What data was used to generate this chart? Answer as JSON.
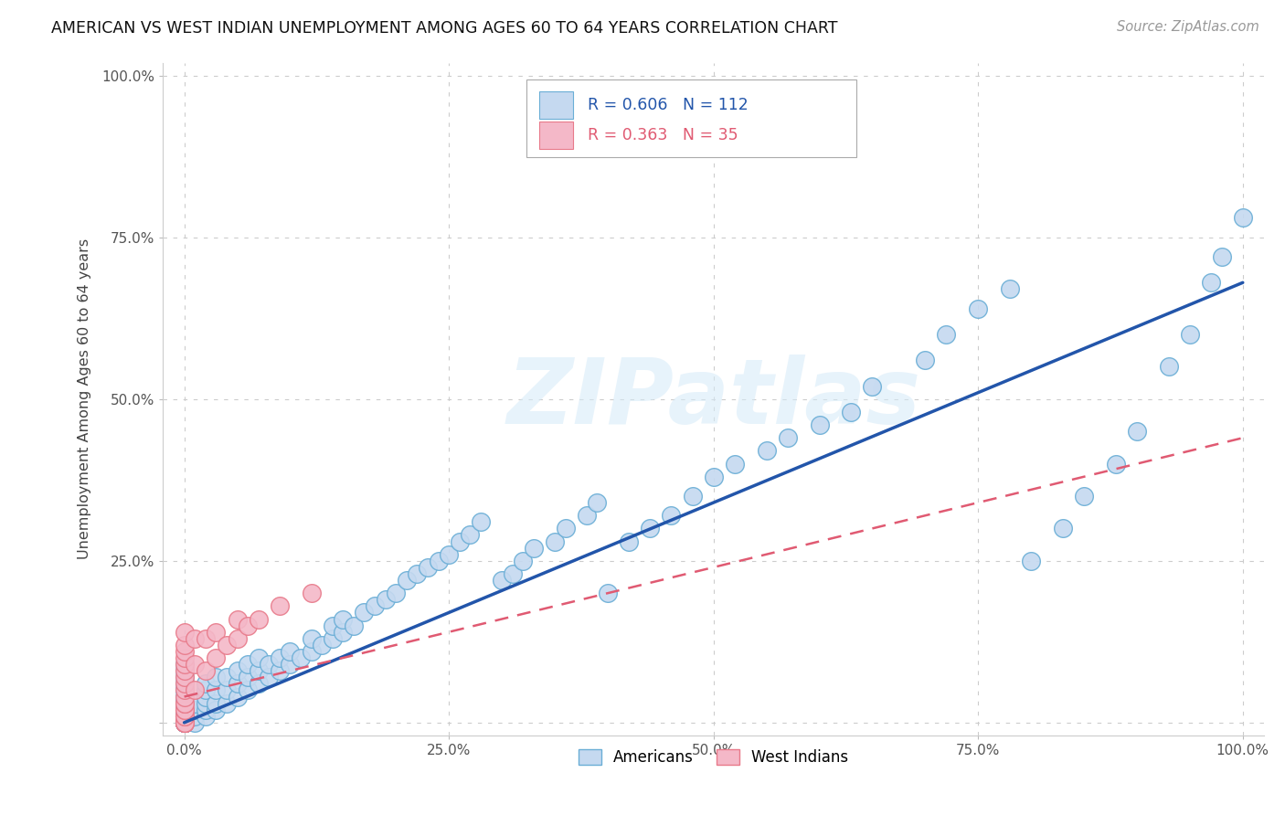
{
  "title": "AMERICAN VS WEST INDIAN UNEMPLOYMENT AMONG AGES 60 TO 64 YEARS CORRELATION CHART",
  "source": "Source: ZipAtlas.com",
  "ylabel": "Unemployment Among Ages 60 to 64 years",
  "watermark": "ZIPatlas",
  "legend_american": "Americans",
  "legend_westindian": "West Indians",
  "r_american": 0.606,
  "n_american": 112,
  "r_westindian": 0.363,
  "n_westindian": 35,
  "american_color": "#c5d9f0",
  "american_edge": "#6aaed6",
  "westindian_color": "#f4b8c8",
  "westindian_edge": "#e87a8a",
  "line_american_color": "#2255aa",
  "line_westindian_color": "#e05a72",
  "background_color": "#ffffff",
  "xlim": [
    -0.02,
    1.02
  ],
  "ylim": [
    -0.02,
    1.02
  ],
  "xticks": [
    0.0,
    0.25,
    0.5,
    0.75,
    1.0
  ],
  "xticklabels": [
    "0.0%",
    "25.0%",
    "50.0%",
    "75.0%",
    "100.0%"
  ],
  "yticks": [
    0.0,
    0.25,
    0.5,
    0.75,
    1.0
  ],
  "yticklabels": [
    "",
    "25.0%",
    "50.0%",
    "75.0%",
    "100.0%"
  ],
  "am_x": [
    0.0,
    0.0,
    0.0,
    0.0,
    0.0,
    0.0,
    0.0,
    0.0,
    0.0,
    0.0,
    0.0,
    0.0,
    0.0,
    0.0,
    0.0,
    0.0,
    0.0,
    0.0,
    0.0,
    0.0,
    0.0,
    0.0,
    0.0,
    0.0,
    0.0,
    0.01,
    0.01,
    0.01,
    0.01,
    0.02,
    0.02,
    0.02,
    0.02,
    0.02,
    0.02,
    0.03,
    0.03,
    0.03,
    0.03,
    0.04,
    0.04,
    0.04,
    0.05,
    0.05,
    0.05,
    0.06,
    0.06,
    0.06,
    0.07,
    0.07,
    0.07,
    0.08,
    0.08,
    0.09,
    0.09,
    0.1,
    0.1,
    0.11,
    0.12,
    0.12,
    0.13,
    0.14,
    0.14,
    0.15,
    0.15,
    0.16,
    0.17,
    0.18,
    0.19,
    0.2,
    0.21,
    0.22,
    0.23,
    0.24,
    0.25,
    0.26,
    0.27,
    0.28,
    0.3,
    0.31,
    0.32,
    0.33,
    0.35,
    0.36,
    0.38,
    0.39,
    0.4,
    0.42,
    0.44,
    0.46,
    0.48,
    0.5,
    0.52,
    0.55,
    0.57,
    0.6,
    0.63,
    0.65,
    0.7,
    0.72,
    0.75,
    0.78,
    0.8,
    0.83,
    0.85,
    0.88,
    0.9,
    0.93,
    0.95,
    0.97,
    0.98,
    1.0
  ],
  "am_y": [
    0.0,
    0.0,
    0.0,
    0.0,
    0.0,
    0.0,
    0.0,
    0.0,
    0.01,
    0.01,
    0.01,
    0.01,
    0.02,
    0.02,
    0.02,
    0.03,
    0.03,
    0.04,
    0.04,
    0.05,
    0.05,
    0.06,
    0.07,
    0.08,
    0.09,
    0.0,
    0.01,
    0.02,
    0.03,
    0.01,
    0.02,
    0.03,
    0.04,
    0.05,
    0.06,
    0.02,
    0.03,
    0.05,
    0.07,
    0.03,
    0.05,
    0.07,
    0.04,
    0.06,
    0.08,
    0.05,
    0.07,
    0.09,
    0.06,
    0.08,
    0.1,
    0.07,
    0.09,
    0.08,
    0.1,
    0.09,
    0.11,
    0.1,
    0.11,
    0.13,
    0.12,
    0.13,
    0.15,
    0.14,
    0.16,
    0.15,
    0.17,
    0.18,
    0.19,
    0.2,
    0.22,
    0.23,
    0.24,
    0.25,
    0.26,
    0.28,
    0.29,
    0.31,
    0.22,
    0.23,
    0.25,
    0.27,
    0.28,
    0.3,
    0.32,
    0.34,
    0.2,
    0.28,
    0.3,
    0.32,
    0.35,
    0.38,
    0.4,
    0.42,
    0.44,
    0.46,
    0.48,
    0.52,
    0.56,
    0.6,
    0.64,
    0.67,
    0.25,
    0.3,
    0.35,
    0.4,
    0.45,
    0.55,
    0.6,
    0.68,
    0.72,
    0.78
  ],
  "wi_x": [
    0.0,
    0.0,
    0.0,
    0.0,
    0.0,
    0.0,
    0.0,
    0.0,
    0.0,
    0.0,
    0.0,
    0.0,
    0.0,
    0.0,
    0.0,
    0.0,
    0.0,
    0.0,
    0.0,
    0.0,
    0.0,
    0.01,
    0.01,
    0.01,
    0.02,
    0.02,
    0.03,
    0.03,
    0.04,
    0.05,
    0.05,
    0.06,
    0.07,
    0.09,
    0.12
  ],
  "wi_y": [
    0.0,
    0.0,
    0.0,
    0.0,
    0.0,
    0.01,
    0.01,
    0.02,
    0.02,
    0.03,
    0.03,
    0.04,
    0.05,
    0.06,
    0.07,
    0.08,
    0.09,
    0.1,
    0.11,
    0.12,
    0.14,
    0.05,
    0.09,
    0.13,
    0.08,
    0.13,
    0.1,
    0.14,
    0.12,
    0.13,
    0.16,
    0.15,
    0.16,
    0.18,
    0.2
  ],
  "line_am_x0": 0.0,
  "line_am_x1": 1.0,
  "line_am_y0": 0.0,
  "line_am_y1": 0.68,
  "line_wi_x0": 0.0,
  "line_wi_x1": 1.0,
  "line_wi_y0": 0.04,
  "line_wi_y1": 0.44
}
